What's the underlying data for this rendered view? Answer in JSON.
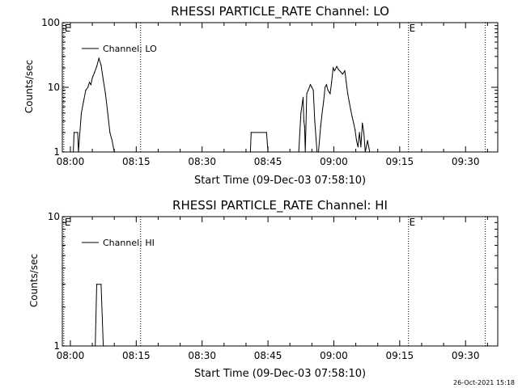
{
  "footer": {
    "timestamp": "26-Oct-2021 15:18"
  },
  "chart_data": [
    {
      "type": "line",
      "title": "RHESSI PARTICLE_RATE Channel: LO",
      "xlabel": "Start Time (09-Dec-03 07:58:10)",
      "ylabel": "Counts/sec",
      "y_scale": "log",
      "xlim": [
        "07:58:10",
        "09:37:20"
      ],
      "ylim": [
        1,
        100
      ],
      "x_ticks": [
        "08:00",
        "08:15",
        "08:30",
        "08:45",
        "09:00",
        "09:15",
        "09:30"
      ],
      "y_ticks": [
        "1",
        "10",
        "100"
      ],
      "markers": [
        {
          "time": "07:58:30",
          "label": "E"
        },
        {
          "time": "08:16:00",
          "label": ""
        },
        {
          "time": "09:17:00",
          "label": "E"
        },
        {
          "time": "09:34:30",
          "label": ""
        }
      ],
      "series": [
        {
          "name": "Channel: LO",
          "x": [
            "08:00:00",
            "08:00:40",
            "08:00:50",
            "08:01:40",
            "08:01:50",
            "08:02:30",
            "08:03:00",
            "08:03:30",
            "08:04:00",
            "08:04:20",
            "08:04:40",
            "08:05:00",
            "08:05:10",
            "08:05:30",
            "08:06:00",
            "08:06:30",
            "08:07:00",
            "08:07:30",
            "08:08:00",
            "08:08:30",
            "08:09:00",
            "08:09:30",
            "08:10:00",
            "08:40:00",
            "08:41:00",
            "08:41:10",
            "08:44:40",
            "08:45:00",
            "08:52:00",
            "08:52:30",
            "08:53:00",
            "08:53:10",
            "08:53:20",
            "08:53:30",
            "08:53:50",
            "08:54:10",
            "08:54:40",
            "08:55:00",
            "08:55:20",
            "08:55:40",
            "08:56:10",
            "08:56:30",
            "08:57:00",
            "08:57:20",
            "08:57:40",
            "08:58:00",
            "08:58:20",
            "08:58:40",
            "08:59:10",
            "08:59:30",
            "08:59:50",
            "09:00:10",
            "09:00:40",
            "09:01:00",
            "09:01:20",
            "09:01:40",
            "09:02:00",
            "09:02:30",
            "09:02:50",
            "09:03:10",
            "09:03:30",
            "09:03:50",
            "09:04:10",
            "09:04:30",
            "09:04:50",
            "09:05:10",
            "09:05:30",
            "09:05:50",
            "09:06:10",
            "09:06:30",
            "09:06:50",
            "09:07:10",
            "09:07:40",
            "09:08:10"
          ],
          "y": [
            1,
            1,
            2,
            2,
            1,
            4,
            6,
            9,
            10,
            12,
            11,
            14,
            15,
            17,
            21,
            28,
            22,
            13,
            8,
            4,
            2,
            1.5,
            1,
            1,
            1,
            2,
            2,
            1,
            1,
            4,
            7,
            3,
            2.5,
            1,
            8,
            9,
            11,
            10,
            9,
            3,
            1,
            1,
            2.5,
            4,
            6,
            10,
            11,
            9,
            8,
            12,
            20,
            18,
            21,
            19,
            18,
            17,
            16,
            18,
            12,
            8,
            6,
            4.5,
            3.5,
            2.8,
            2.2,
            1.5,
            1.2,
            2,
            1.2,
            2.8,
            2,
            1,
            1.5,
            1
          ]
        }
      ]
    },
    {
      "type": "line",
      "title": "RHESSI PARTICLE_RATE Channel: HI",
      "xlabel": "Start Time (09-Dec-03 07:58:10)",
      "ylabel": "Counts/sec",
      "y_scale": "log",
      "xlim": [
        "07:58:10",
        "09:37:20"
      ],
      "ylim": [
        1,
        10
      ],
      "x_ticks": [
        "08:00",
        "08:15",
        "08:30",
        "08:45",
        "09:00",
        "09:15",
        "09:30"
      ],
      "y_ticks": [
        "1",
        "10"
      ],
      "markers": [
        {
          "time": "07:58:30",
          "label": "E"
        },
        {
          "time": "08:16:00",
          "label": ""
        },
        {
          "time": "09:17:00",
          "label": "E"
        },
        {
          "time": "09:34:30",
          "label": ""
        }
      ],
      "series": [
        {
          "name": "Channel: HI",
          "x": [
            "08:05:00",
            "08:05:40",
            "08:06:00",
            "08:07:00",
            "08:07:30",
            "08:08:00"
          ],
          "y": [
            1,
            1,
            3,
            3,
            1,
            1
          ]
        }
      ]
    }
  ]
}
